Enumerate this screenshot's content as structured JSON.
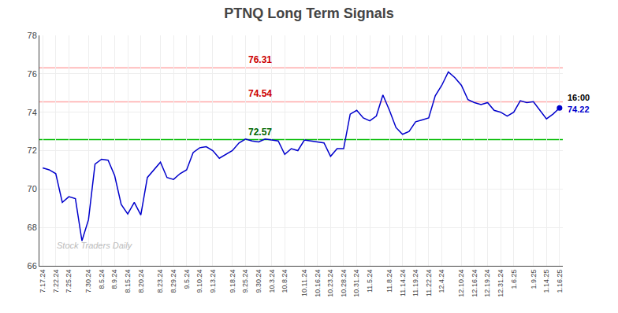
{
  "chart_data": {
    "type": "line",
    "title": "PTNQ Long Term Signals",
    "categories": [
      "7.17.24",
      null,
      "7.22.24",
      null,
      "7.25.24",
      null,
      null,
      "7.30.24",
      null,
      "8.5.24",
      null,
      "8.9.24",
      null,
      "8.15.24",
      null,
      "8.20.24",
      null,
      null,
      "8.23.24",
      null,
      "8.29.24",
      null,
      "9.5.24",
      null,
      "9.10.24",
      null,
      "9.13.24",
      null,
      null,
      "9.18.24",
      null,
      "9.25.24",
      null,
      "9.30.24",
      null,
      "10.3.24",
      null,
      "10.8.24",
      null,
      null,
      "10.11.24",
      null,
      "10.16.24",
      null,
      "10.23.24",
      null,
      "10.28.24",
      null,
      "10.31.24",
      null,
      "11.5.24",
      null,
      null,
      "11.8.24",
      null,
      "11.14.24",
      null,
      "11.19.24",
      null,
      "11.22.24",
      null,
      "12.4.24",
      null,
      null,
      "12.10.24",
      null,
      "12.16.24",
      null,
      "12.19.24",
      null,
      "12.31.24",
      null,
      "1.6.25",
      null,
      null,
      "1.9.25",
      null,
      "1.14.25",
      null,
      "1.16.25"
    ],
    "values": [
      71.1,
      71.0,
      70.8,
      69.3,
      69.6,
      69.5,
      67.3,
      68.4,
      71.3,
      71.55,
      71.5,
      70.7,
      69.2,
      68.7,
      69.3,
      68.65,
      70.6,
      71.0,
      71.4,
      70.6,
      70.5,
      70.8,
      71.0,
      71.9,
      72.15,
      72.2,
      72.0,
      71.6,
      71.8,
      72.0,
      72.4,
      72.6,
      72.5,
      72.45,
      72.6,
      72.55,
      72.5,
      71.8,
      72.1,
      72.0,
      72.55,
      72.5,
      72.45,
      72.4,
      71.7,
      72.1,
      72.1,
      73.9,
      74.1,
      73.7,
      73.55,
      73.8,
      74.9,
      74.1,
      73.2,
      72.85,
      73.0,
      73.5,
      73.6,
      73.7,
      74.85,
      75.4,
      76.1,
      75.8,
      75.4,
      74.65,
      74.5,
      74.4,
      74.5,
      74.1,
      74.0,
      73.8,
      74.0,
      74.6,
      74.5,
      74.55,
      74.1,
      73.65,
      73.9,
      74.22
    ],
    "color": "#0000cc",
    "reference_lines": [
      {
        "value": 76.31,
        "label": "76.31",
        "color": "#ffaaaa",
        "label_color": "#cc0000"
      },
      {
        "value": 74.54,
        "label": "74.54",
        "color": "#ffaaaa",
        "label_color": "#cc0000"
      },
      {
        "value": 72.57,
        "label": "72.57",
        "color": "#00bb00",
        "label_color": "#006600"
      }
    ],
    "end_point": {
      "value": 74.22,
      "time_label": "16:00",
      "value_label": "74.22"
    },
    "watermark": "Stock Traders Daily",
    "watermark_color": "#bbbbbb",
    "ylim": [
      66,
      78
    ],
    "yticks": [
      66,
      68,
      70,
      72,
      74,
      76,
      78
    ],
    "grid": true
  }
}
